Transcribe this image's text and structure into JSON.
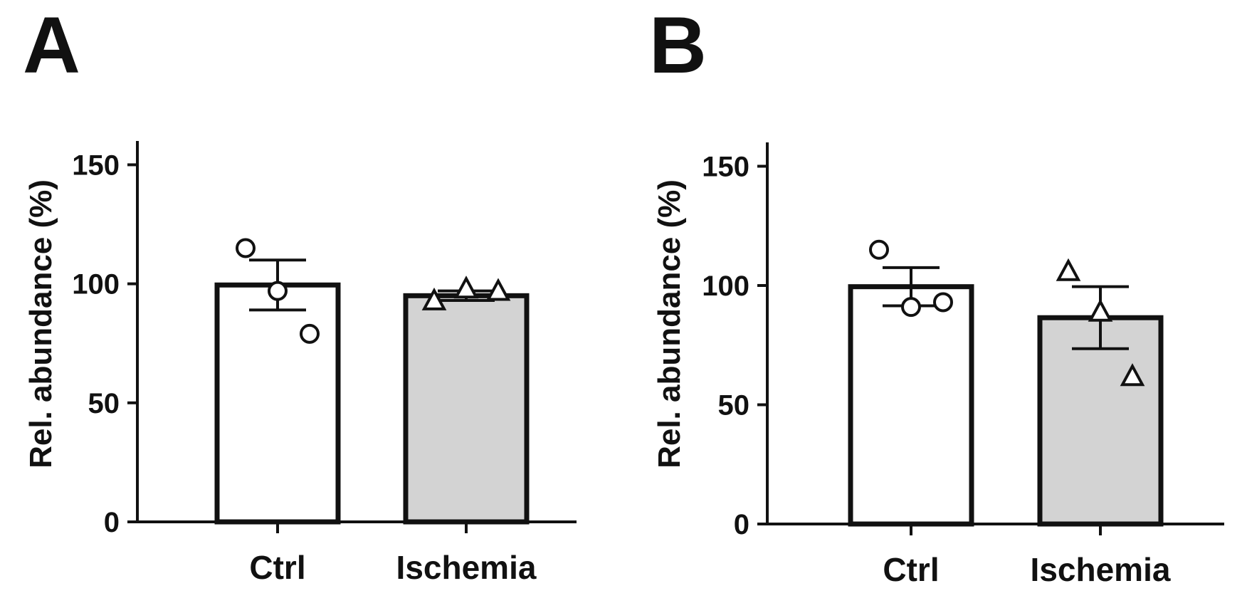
{
  "chart_data": [
    {
      "panel_label": "A",
      "type": "bar",
      "categories": [
        "Ctrl",
        "Ischemia"
      ],
      "values": [
        99.5,
        95
      ],
      "errors": [
        10.5,
        2
      ],
      "points": [
        [
          115,
          97,
          79
        ],
        [
          93,
          98,
          97
        ]
      ],
      "markers": [
        "circle",
        "triangle"
      ],
      "bar_fills": [
        "#ffffff",
        "#d3d3d3"
      ],
      "title": "",
      "xlabel": "",
      "ylabel": "Rel. abundance (%)",
      "ylim": [
        0,
        160
      ],
      "yticks": [
        0,
        50,
        100,
        150
      ],
      "grid": false,
      "legend": null
    },
    {
      "panel_label": "B",
      "type": "bar",
      "categories": [
        "Ctrl",
        "Ischemia"
      ],
      "values": [
        99.5,
        86.5
      ],
      "errors": [
        8,
        13
      ],
      "points": [
        [
          115,
          91,
          93
        ],
        [
          106,
          89,
          62
        ]
      ],
      "markers": [
        "circle",
        "triangle"
      ],
      "bar_fills": [
        "#ffffff",
        "#d3d3d3"
      ],
      "title": "",
      "xlabel": "",
      "ylabel": "Rel. abundance (%)",
      "ylim": [
        0,
        160
      ],
      "yticks": [
        0,
        50,
        100,
        150
      ],
      "grid": false,
      "legend": null
    }
  ]
}
